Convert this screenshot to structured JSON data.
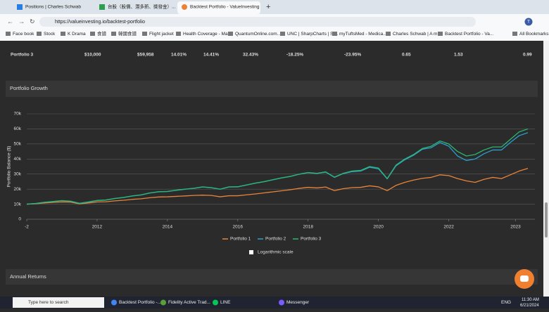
{
  "browser": {
    "tabs": [
      "Positions | Charles Schwab",
      "台股（股價、潛多新、獎發金）...",
      "Backtest Portfolio - ValueInvesting"
    ],
    "url": "https://valueinvesting.io/backtest-portfolio",
    "profile": "T",
    "bookmarks": [
      "Face book",
      "Stock",
      "K Drama",
      "食譜",
      "韓國食譜",
      "Flight jacket",
      "Health Coverage - Ma...",
      "QuantumOnline.com...",
      "UNC | SharpCharts | St...",
      "myTuftsMed - Medica...",
      "Charles Schwab | A m...",
      "Backtest Portfolio - Va...",
      "All Bookmarks"
    ]
  },
  "table_row": [
    "Portfolio 3",
    "$10,000",
    "$59,958",
    "14.01%",
    "14.41%",
    "32.43%",
    "-18.25%",
    "-23.95%",
    "0.65",
    "1.53",
    "0.99"
  ],
  "section_title": "Portfolio Growth",
  "next_section_title": "Annual Returns",
  "log_scale_label": "Logarithmic scale",
  "chart_data": {
    "type": "line",
    "y_label": "Portfolio Balance ($)",
    "grid": true,
    "xlim": [
      2010,
      2024.45
    ],
    "xticks": [
      {
        "value": 2010,
        "label": "-2"
      },
      2012,
      2014,
      2016,
      2018,
      2020,
      2022,
      {
        "value": 2023.9,
        "label": "2023"
      }
    ],
    "ylim": [
      0,
      70000
    ],
    "yticks": [
      0,
      {
        "value": 10000,
        "label": "10k"
      },
      {
        "value": 20000,
        "label": "20k"
      },
      {
        "value": 30000,
        "label": "30k"
      },
      {
        "value": 40000,
        "label": "40k"
      },
      {
        "value": 50000,
        "label": "50k"
      },
      {
        "value": 60000,
        "label": "60k"
      },
      {
        "value": 70000,
        "label": "70k"
      }
    ],
    "x": [
      2010,
      2010.25,
      2010.5,
      2010.75,
      2011,
      2011.25,
      2011.5,
      2011.75,
      2012,
      2012.25,
      2012.5,
      2012.75,
      2013,
      2013.25,
      2013.5,
      2013.75,
      2014,
      2014.25,
      2014.5,
      2014.75,
      2015,
      2015.25,
      2015.5,
      2015.75,
      2016,
      2016.25,
      2016.5,
      2016.75,
      2017,
      2017.25,
      2017.5,
      2017.75,
      2018,
      2018.25,
      2018.5,
      2018.75,
      2019,
      2019.25,
      2019.5,
      2019.75,
      2020,
      2020.25,
      2020.5,
      2020.75,
      2021,
      2021.25,
      2021.5,
      2021.75,
      2022,
      2022.25,
      2022.5,
      2022.75,
      2023,
      2023.25,
      2023.5,
      2023.75,
      2024,
      2024.25
    ],
    "series": [
      {
        "name": "Portfolio 1",
        "color": "#e8843a",
        "values": [
          10000,
          10300,
          10800,
          11200,
          11500,
          11400,
          10200,
          10800,
          11500,
          11600,
          12200,
          12600,
          13200,
          13600,
          14300,
          14800,
          14900,
          15200,
          15500,
          15800,
          16000,
          15800,
          14900,
          15600,
          15600,
          16200,
          16800,
          17500,
          18200,
          18900,
          19600,
          20500,
          21200,
          20800,
          21400,
          19000,
          20300,
          21000,
          21200,
          22200,
          21500,
          19000,
          22500,
          24500,
          26000,
          27200,
          27800,
          29500,
          29000,
          27000,
          25500,
          24500,
          26500,
          27800,
          27000,
          29500,
          32000,
          33800
        ]
      },
      {
        "name": "Portfolio 2",
        "color": "#2a9fd0",
        "values": [
          10000,
          10400,
          11200,
          11700,
          12300,
          11900,
          10500,
          11400,
          12400,
          12700,
          13700,
          14400,
          15400,
          16100,
          17400,
          18200,
          18400,
          19200,
          19900,
          20500,
          21400,
          20900,
          19900,
          21400,
          21500,
          22700,
          23900,
          24900,
          26200,
          27400,
          28400,
          29900,
          30900,
          30400,
          31300,
          27800,
          30300,
          31600,
          32000,
          34500,
          33500,
          26800,
          35500,
          39500,
          42500,
          46500,
          47500,
          51000,
          48500,
          42000,
          39000,
          40000,
          43500,
          46000,
          46000,
          51000,
          55500,
          57500
        ]
      },
      {
        "name": "Portfolio 3",
        "color": "#2bb673",
        "values": [
          10000,
          10500,
          11300,
          11800,
          12400,
          12000,
          10600,
          11500,
          12500,
          12800,
          13800,
          14500,
          15500,
          16200,
          17500,
          18300,
          18500,
          19300,
          20000,
          20600,
          21500,
          21000,
          20000,
          21500,
          21600,
          22800,
          24000,
          25000,
          26300,
          27500,
          28500,
          30000,
          31000,
          30500,
          31500,
          28000,
          30500,
          32000,
          32500,
          35000,
          34000,
          27000,
          36000,
          40000,
          43000,
          47000,
          48500,
          52000,
          50000,
          45000,
          42000,
          43000,
          46000,
          48000,
          48000,
          53000,
          58000,
          60000
        ]
      }
    ]
  },
  "taskbar": {
    "search": "Type here to search",
    "apps": [
      "Backtest Portfolio -...",
      "Fidelity Active Trad...",
      "LINE",
      "Messenger"
    ],
    "lang": "ENG",
    "time": "11:30 AM",
    "date": "6/21/2024"
  }
}
